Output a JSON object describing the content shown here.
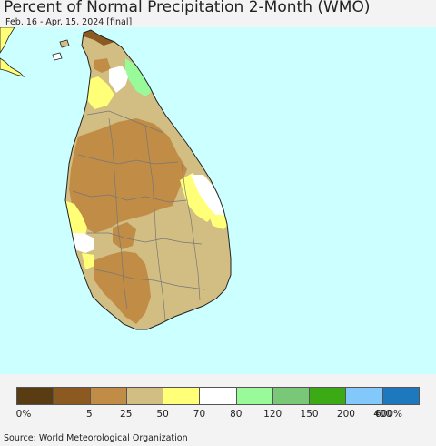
{
  "title": "Percent of Normal Precipitation 2-Month (WMO)",
  "subtitle": "Feb. 16 - Apr. 15, 2024 [final]",
  "source": "Source: World Meteorological Organization",
  "map": {
    "ocean_color": "#ccffff",
    "boundary_color": "#777777",
    "coast_color": "#222222"
  },
  "legend": {
    "colors": [
      "#5a3c12",
      "#8c5a20",
      "#c08c46",
      "#d2be82",
      "#ffff78",
      "#ffffff",
      "#98fa98",
      "#78c878",
      "#3caa14",
      "#82c8fa",
      "#1e78be"
    ],
    "tick_labels": [
      "0%",
      "5",
      "25",
      "50",
      "70",
      "80",
      "120",
      "150",
      "200",
      "400",
      "600%"
    ]
  }
}
